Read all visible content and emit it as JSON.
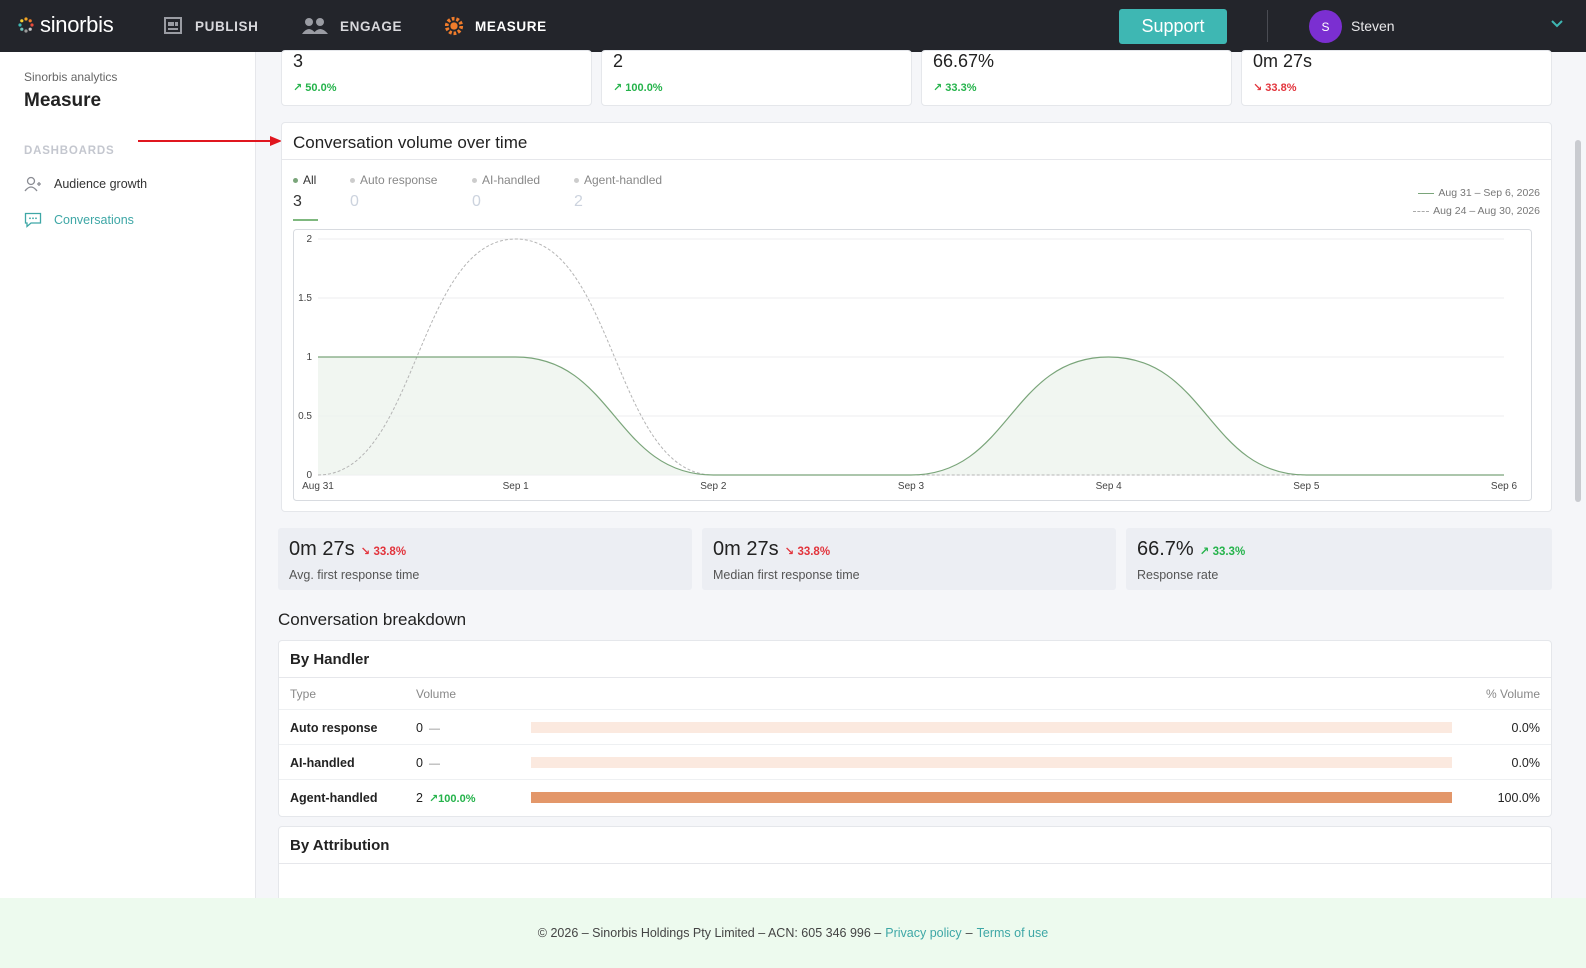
{
  "brand": {
    "name": "sinorbis"
  },
  "nav": [
    {
      "label": "PUBLISH",
      "icon": "publish-icon"
    },
    {
      "label": "ENGAGE",
      "icon": "engage-icon"
    },
    {
      "label": "MEASURE",
      "icon": "measure-icon",
      "active": true
    }
  ],
  "header": {
    "support_label": "Support",
    "user_initial": "S",
    "user_name": "Steven"
  },
  "sidebar": {
    "subtitle": "Sinorbis analytics",
    "title": "Measure",
    "section_label": "DASHBOARDS",
    "items": [
      {
        "label": "Audience growth",
        "icon": "audience-icon"
      },
      {
        "label": "Conversations",
        "icon": "conversations-icon",
        "active": true
      }
    ]
  },
  "kpis": [
    {
      "value": "3",
      "delta": "50.0%",
      "trend": "up"
    },
    {
      "value": "2",
      "delta": "100.0%",
      "trend": "up"
    },
    {
      "value": "66.67%",
      "delta": "33.3%",
      "trend": "up"
    },
    {
      "value": "0m 27s",
      "delta": "33.8%",
      "trend": "down"
    }
  ],
  "volume_chart": {
    "title": "Conversation volume over time",
    "tabs": [
      {
        "label": "All",
        "value": "3",
        "active": true
      },
      {
        "label": "Auto response",
        "value": "0"
      },
      {
        "label": "AI-handled",
        "value": "0"
      },
      {
        "label": "Agent-handled",
        "value": "2"
      }
    ],
    "legend": [
      {
        "label": "Aug 31 – Sep 6, 2026",
        "style": "solid"
      },
      {
        "label": "Aug 24 – Aug 30, 2026",
        "style": "dashed"
      }
    ]
  },
  "chart_data": {
    "type": "area",
    "categories": [
      "Aug 31",
      "Sep 1",
      "Sep 2",
      "Sep 3",
      "Sep 4",
      "Sep 5",
      "Sep 6"
    ],
    "series": [
      {
        "name": "Aug 31 – Sep 6, 2026",
        "values": [
          1,
          1,
          0,
          0,
          1,
          0,
          0
        ],
        "style": "solid",
        "color": "#7aa57a"
      },
      {
        "name": "Aug 24 – Aug 30, 2026",
        "values": [
          0,
          2,
          0,
          0,
          0,
          0,
          0
        ],
        "style": "dashed",
        "color": "#b5b5b5"
      }
    ],
    "yticks": [
      "0",
      "0.5",
      "1",
      "1.5",
      "2"
    ],
    "ylim": [
      0,
      2
    ],
    "grid": true,
    "legend_position": "top-right"
  },
  "stats": [
    {
      "value": "0m 27s",
      "delta": "33.8%",
      "trend": "down",
      "label": "Avg. first response time"
    },
    {
      "value": "0m 27s",
      "delta": "33.8%",
      "trend": "down",
      "label": "Median first response time"
    },
    {
      "value": "66.7%",
      "delta": "33.3%",
      "trend": "up",
      "label": "Response rate"
    }
  ],
  "breakdown": {
    "title": "Conversation breakdown",
    "by_handler": {
      "title": "By Handler",
      "headers": {
        "type": "Type",
        "volume": "Volume",
        "pct": "% Volume"
      },
      "rows": [
        {
          "type": "Auto response",
          "volume": "0",
          "delta": "—",
          "trend": "none",
          "pct": "0.0%",
          "fraction": 0
        },
        {
          "type": "AI-handled",
          "volume": "0",
          "delta": "—",
          "trend": "none",
          "pct": "0.0%",
          "fraction": 0
        },
        {
          "type": "Agent-handled",
          "volume": "2",
          "delta": "100.0%",
          "trend": "up",
          "pct": "100.0%",
          "fraction": 1
        }
      ]
    },
    "by_attribution_title": "By Attribution"
  },
  "footer": {
    "text": "© 2026 – Sinorbis Holdings Pty Limited – ACN: 605 346 996 –",
    "privacy": "Privacy policy",
    "sep": "–",
    "terms": "Terms of use"
  }
}
